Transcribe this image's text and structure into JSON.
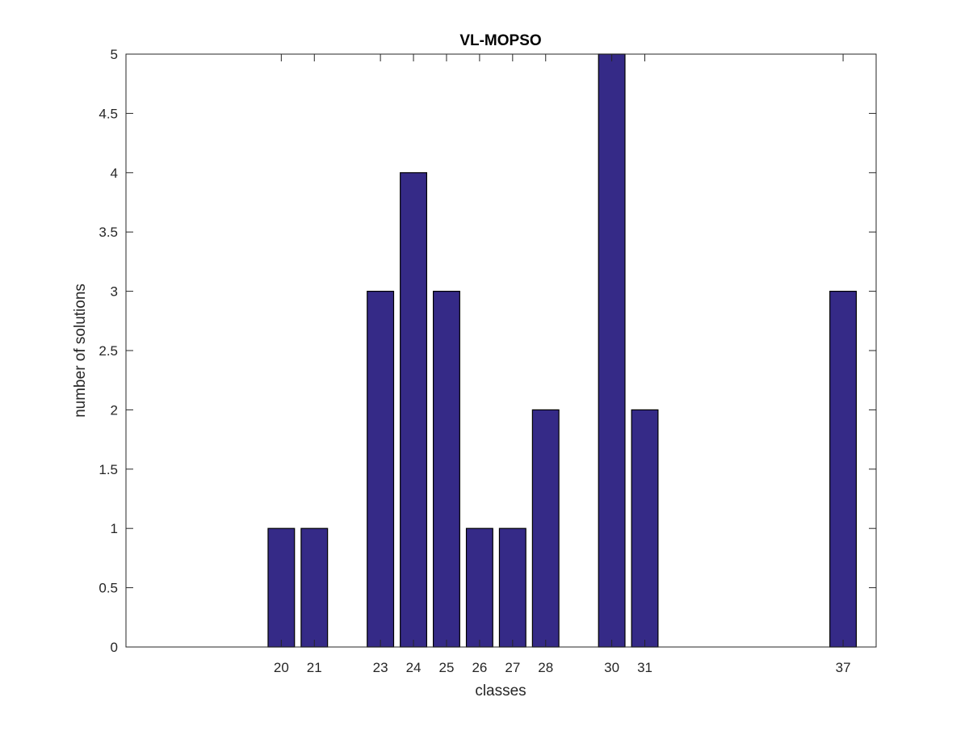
{
  "chart_data": {
    "type": "bar",
    "title": "VL-MOPSO",
    "xlabel": "classes",
    "ylabel": "number of solutions",
    "x": [
      20,
      21,
      23,
      24,
      25,
      26,
      27,
      28,
      30,
      31,
      37
    ],
    "values": [
      1,
      1,
      3,
      4,
      3,
      1,
      1,
      2,
      5,
      2,
      3
    ],
    "xlim": [
      15.3,
      38
    ],
    "ylim": [
      0,
      5
    ],
    "yticks": [
      "0",
      "0.5",
      "1",
      "1.5",
      "2",
      "2.5",
      "3",
      "3.5",
      "4",
      "4.5",
      "5"
    ],
    "grid": false,
    "legend": "none",
    "bar_color": "#352a87",
    "bar_edge_color": "#000000"
  }
}
